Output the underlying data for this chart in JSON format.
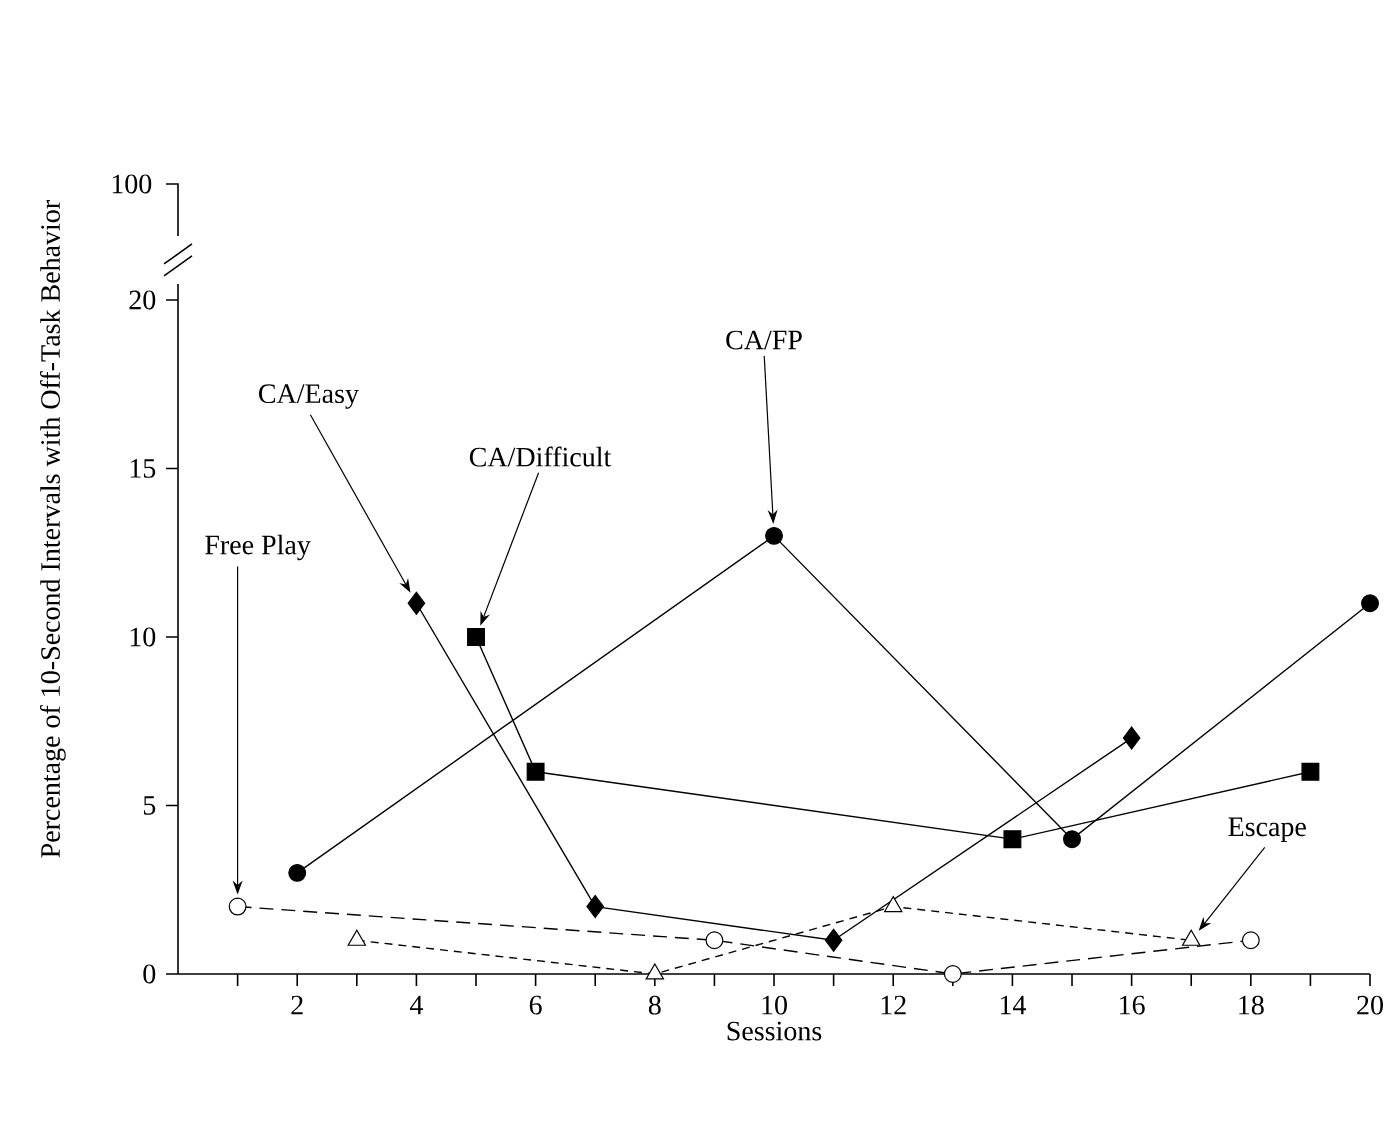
{
  "chart_data": {
    "type": "line",
    "xlabel": "Sessions",
    "ylabel": "Percentage of 10-Second Intervals with Off-Task Behavior",
    "xlim": [
      0,
      20
    ],
    "xticks": [
      {
        "value": 1,
        "label": null
      },
      2,
      {
        "value": 3,
        "label": null
      },
      4,
      {
        "value": 5,
        "label": null
      },
      6,
      {
        "value": 7,
        "label": null
      },
      8,
      {
        "value": 9,
        "label": null
      },
      10,
      {
        "value": 11,
        "label": null
      },
      12,
      {
        "value": 13,
        "label": null
      },
      14,
      {
        "value": 15,
        "label": null
      },
      16,
      {
        "value": 17,
        "label": null
      },
      18,
      {
        "value": 19,
        "label": null
      },
      20
    ],
    "ylim": [
      0,
      20
    ],
    "yticks": [
      0,
      5,
      10,
      15,
      20
    ],
    "annotations": [
      "100"
    ],
    "series": [
      {
        "name": "CA/FP",
        "color": "#000000",
        "marker": "circle",
        "line_style": "solid",
        "x": [
          2,
          10,
          15,
          20
        ],
        "values": [
          3,
          13,
          4,
          11
        ]
      },
      {
        "name": "CA/Easy",
        "color": "#000000",
        "marker": "diamond",
        "line_style": "solid",
        "x": [
          4,
          7,
          11,
          16
        ],
        "values": [
          11,
          2,
          1,
          7
        ]
      },
      {
        "name": "CA/Difficult",
        "color": "#000000",
        "marker": "square",
        "line_style": "solid",
        "x": [
          5,
          6,
          14,
          19
        ],
        "values": [
          10,
          6,
          4,
          6
        ]
      },
      {
        "name": "Free Play",
        "color": "#000000",
        "marker": "circle",
        "colors": [
          "#ffffff",
          "#ffffff",
          "#ffffff",
          "#ffffff"
        ],
        "line_style": "dashed",
        "x": [
          1,
          9,
          13,
          18
        ],
        "values": [
          2,
          1,
          0,
          1
        ]
      },
      {
        "name": "Escape",
        "color": "#000000",
        "marker": "triangle",
        "colors": [
          "#ffffff",
          "#ffffff",
          "#ffffff",
          "#ffffff"
        ],
        "line_style": "dotted",
        "x": [
          3,
          8,
          12,
          17
        ],
        "values": [
          1,
          0,
          2,
          1
        ]
      }
    ]
  }
}
